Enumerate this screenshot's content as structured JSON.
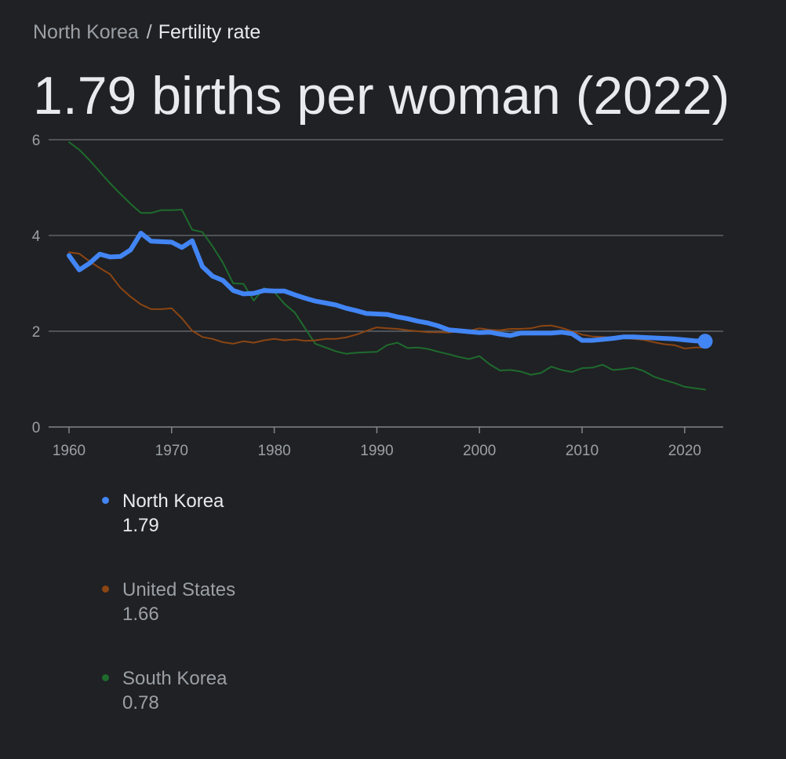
{
  "breadcrumb": {
    "parent": "North Korea",
    "separator": "/",
    "current": "Fertility rate"
  },
  "headline": "1.79 births per woman (2022)",
  "colors": {
    "background": "#202124",
    "grid": "#5f6368",
    "axis_text": "#9aa0a6",
    "north_korea": "#4285f4",
    "united_states": "#8b4513",
    "south_korea": "#1e6b2e"
  },
  "chart_data": {
    "type": "line",
    "ylim": [
      0,
      6
    ],
    "xlim": [
      1960,
      2022
    ],
    "yticks": [
      "0",
      "2",
      "4",
      "6"
    ],
    "xticks": [
      "1960",
      "1970",
      "1980",
      "1990",
      "2000",
      "2010",
      "2020"
    ],
    "grid": true,
    "legend": "below",
    "series": [
      {
        "name": "South Korea",
        "key": "south_korea",
        "x": [
          1960,
          1961,
          1962,
          1963,
          1964,
          1965,
          1966,
          1967,
          1968,
          1969,
          1970,
          1971,
          1972,
          1973,
          1974,
          1975,
          1976,
          1977,
          1978,
          1979,
          1980,
          1981,
          1982,
          1983,
          1984,
          1985,
          1986,
          1987,
          1988,
          1989,
          1990,
          1991,
          1992,
          1993,
          1994,
          1995,
          1996,
          1997,
          1998,
          1999,
          2000,
          2001,
          2002,
          2003,
          2004,
          2005,
          2006,
          2007,
          2008,
          2009,
          2010,
          2011,
          2012,
          2013,
          2014,
          2015,
          2016,
          2017,
          2018,
          2019,
          2020,
          2021,
          2022
        ],
        "values": [
          5.95,
          5.79,
          5.57,
          5.33,
          5.09,
          4.87,
          4.66,
          4.47,
          4.47,
          4.53,
          4.53,
          4.54,
          4.12,
          4.07,
          3.77,
          3.43,
          3.0,
          2.99,
          2.64,
          2.9,
          2.82,
          2.57,
          2.39,
          2.06,
          1.74,
          1.66,
          1.58,
          1.53,
          1.55,
          1.56,
          1.57,
          1.71,
          1.76,
          1.65,
          1.66,
          1.63,
          1.57,
          1.52,
          1.46,
          1.42,
          1.48,
          1.31,
          1.18,
          1.19,
          1.16,
          1.09,
          1.13,
          1.26,
          1.19,
          1.15,
          1.23,
          1.24,
          1.3,
          1.19,
          1.21,
          1.24,
          1.17,
          1.05,
          0.98,
          0.92,
          0.84,
          0.81,
          0.78
        ]
      },
      {
        "name": "United States",
        "key": "united_states",
        "x": [
          1960,
          1961,
          1962,
          1963,
          1964,
          1965,
          1966,
          1967,
          1968,
          1969,
          1970,
          1971,
          1972,
          1973,
          1974,
          1975,
          1976,
          1977,
          1978,
          1979,
          1980,
          1981,
          1982,
          1983,
          1984,
          1985,
          1986,
          1987,
          1988,
          1989,
          1990,
          1991,
          1992,
          1993,
          1994,
          1995,
          1996,
          1997,
          1998,
          1999,
          2000,
          2001,
          2002,
          2003,
          2004,
          2005,
          2006,
          2007,
          2008,
          2009,
          2010,
          2011,
          2012,
          2013,
          2014,
          2015,
          2016,
          2017,
          2018,
          2019,
          2020,
          2021,
          2022
        ],
        "values": [
          3.65,
          3.62,
          3.46,
          3.32,
          3.19,
          2.91,
          2.72,
          2.56,
          2.46,
          2.46,
          2.48,
          2.27,
          2.01,
          1.88,
          1.84,
          1.77,
          1.74,
          1.79,
          1.76,
          1.81,
          1.84,
          1.81,
          1.83,
          1.8,
          1.81,
          1.84,
          1.84,
          1.87,
          1.93,
          2.01,
          2.08,
          2.06,
          2.05,
          2.02,
          2.0,
          1.98,
          1.98,
          1.97,
          2.0,
          2.01,
          2.06,
          2.03,
          2.02,
          2.05,
          2.05,
          2.06,
          2.11,
          2.12,
          2.07,
          2.0,
          1.93,
          1.89,
          1.88,
          1.86,
          1.86,
          1.84,
          1.82,
          1.77,
          1.73,
          1.71,
          1.64,
          1.66,
          1.66
        ]
      },
      {
        "name": "North Korea",
        "key": "north_korea",
        "x": [
          1960,
          1961,
          1962,
          1963,
          1964,
          1965,
          1966,
          1967,
          1968,
          1969,
          1970,
          1971,
          1972,
          1973,
          1974,
          1975,
          1976,
          1977,
          1978,
          1979,
          1980,
          1981,
          1982,
          1983,
          1984,
          1985,
          1986,
          1987,
          1988,
          1989,
          1990,
          1991,
          1992,
          1993,
          1994,
          1995,
          1996,
          1997,
          1998,
          1999,
          2000,
          2001,
          2002,
          2003,
          2004,
          2005,
          2006,
          2007,
          2008,
          2009,
          2010,
          2011,
          2012,
          2013,
          2014,
          2015,
          2016,
          2017,
          2018,
          2019,
          2020,
          2021,
          2022
        ],
        "values": [
          3.58,
          3.28,
          3.42,
          3.61,
          3.55,
          3.56,
          3.7,
          4.05,
          3.88,
          3.87,
          3.86,
          3.75,
          3.89,
          3.35,
          3.15,
          3.06,
          2.85,
          2.78,
          2.79,
          2.85,
          2.84,
          2.84,
          2.76,
          2.69,
          2.63,
          2.59,
          2.55,
          2.48,
          2.43,
          2.37,
          2.36,
          2.35,
          2.3,
          2.26,
          2.21,
          2.17,
          2.11,
          2.03,
          2.01,
          1.99,
          1.97,
          1.98,
          1.94,
          1.91,
          1.96,
          1.96,
          1.96,
          1.96,
          1.98,
          1.95,
          1.81,
          1.81,
          1.83,
          1.85,
          1.88,
          1.88,
          1.87,
          1.86,
          1.85,
          1.84,
          1.82,
          1.8,
          1.79
        ]
      }
    ]
  },
  "legend": [
    {
      "name": "North Korea",
      "value": "1.79",
      "key": "north_korea",
      "state": "active"
    },
    {
      "name": "United States",
      "value": "1.66",
      "key": "united_states",
      "state": "muted"
    },
    {
      "name": "South Korea",
      "value": "0.78",
      "key": "south_korea",
      "state": "muted"
    }
  ]
}
